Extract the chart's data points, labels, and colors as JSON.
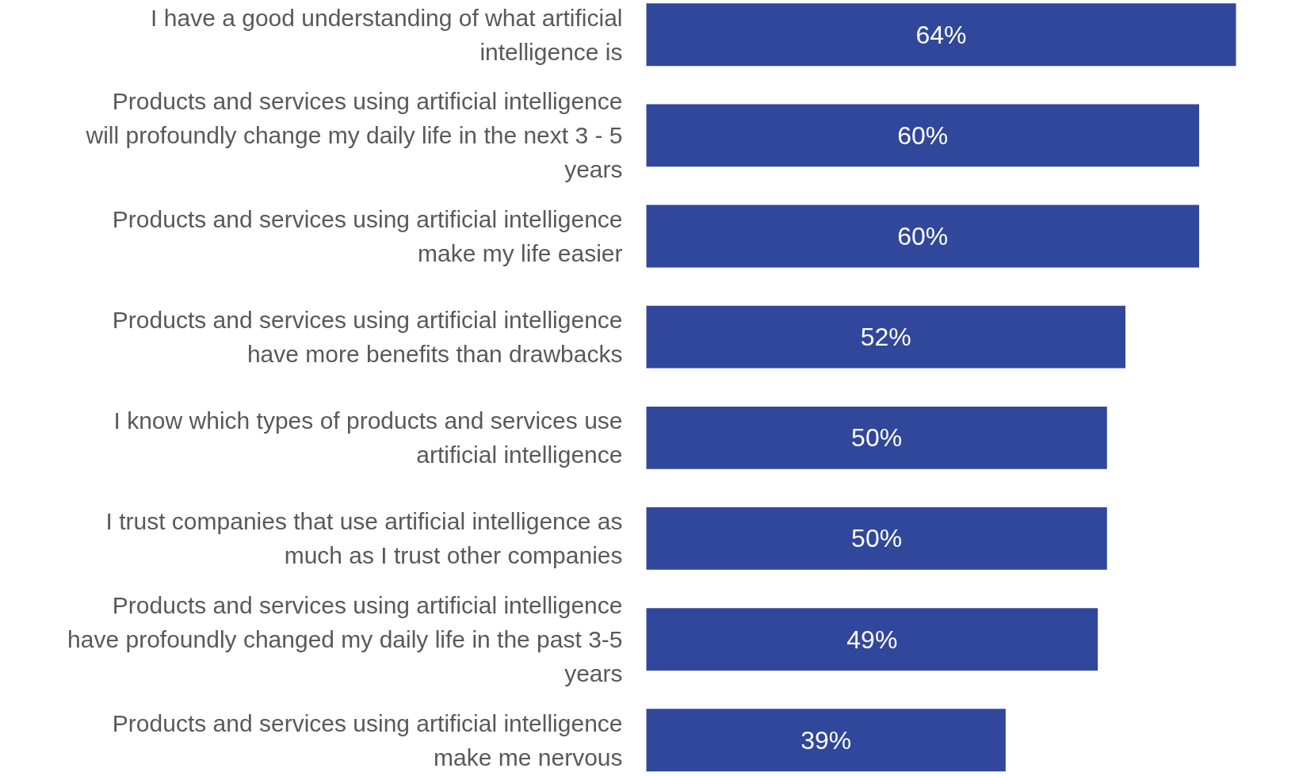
{
  "chart_data": {
    "type": "bar",
    "orientation": "horizontal",
    "color": "#30479b",
    "categories": [
      "I have a good understanding of what artificial intelligence is",
      "Products and services using artificial intelligence will profoundly change my daily life in the next 3 - 5 years",
      "Products and services using artificial intelligence make my life easier",
      "Products and services using artificial intelligence have more benefits than drawbacks",
      "I know which types of products and services use artificial intelligence",
      "I trust companies that use artificial intelligence as much as I trust other companies",
      "Products and services using artificial intelligence have profoundly changed my daily life in the past 3-5 years",
      "Products and services using artificial intelligence make me nervous"
    ],
    "values": [
      64,
      60,
      60,
      52,
      50,
      50,
      49,
      39
    ],
    "value_labels": [
      "64%",
      "60%",
      "60%",
      "52%",
      "50%",
      "50%",
      "49%",
      "39%"
    ]
  }
}
